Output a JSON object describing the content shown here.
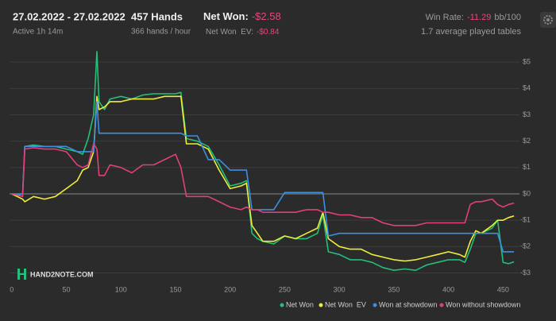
{
  "header": {
    "date_range": "27.02.2022 - 27.02.2022",
    "active": "Active 1h 14m",
    "hands": "457 Hands",
    "hands_per_hour": "366 hands / hour",
    "net_won_label": "Net Won:",
    "net_won_value": "-$2.58",
    "net_won_ev_label": "Net Won  EV:",
    "net_won_ev_value": "-$0.84",
    "win_rate_label": "Win Rate:",
    "win_rate_value": "-11.29",
    "win_rate_unit": "bb/100",
    "tables": "1.7 average played tables"
  },
  "watermark": "HAND2NOTE.COM",
  "chart_data": {
    "type": "line",
    "x": [
      0,
      5,
      10,
      12,
      20,
      30,
      40,
      50,
      60,
      65,
      70,
      75,
      78,
      80,
      85,
      90,
      100,
      110,
      120,
      130,
      140,
      150,
      155,
      160,
      170,
      180,
      190,
      200,
      210,
      215,
      220,
      225,
      230,
      240,
      250,
      260,
      270,
      280,
      285,
      290,
      300,
      310,
      320,
      330,
      340,
      350,
      360,
      370,
      380,
      390,
      400,
      410,
      415,
      420,
      425,
      430,
      440,
      445,
      450,
      455,
      460
    ],
    "series": [
      {
        "name": "Net Won",
        "color": "#22c07a",
        "values": [
          0,
          -0.05,
          0,
          1.8,
          1.85,
          1.8,
          1.8,
          1.7,
          1.6,
          1.5,
          2.1,
          3.0,
          5.4,
          3.5,
          3.2,
          3.6,
          3.7,
          3.6,
          3.75,
          3.8,
          3.8,
          3.8,
          3.85,
          2.1,
          2.0,
          1.8,
          1.1,
          0.3,
          0.4,
          0.5,
          -1.5,
          -1.7,
          -1.8,
          -1.9,
          -1.6,
          -1.7,
          -1.7,
          -1.5,
          -0.8,
          -2.2,
          -2.3,
          -2.5,
          -2.5,
          -2.6,
          -2.8,
          -2.9,
          -2.85,
          -2.9,
          -2.7,
          -2.6,
          -2.5,
          -2.5,
          -2.6,
          -2.1,
          -1.5,
          -1.5,
          -1.3,
          -1.0,
          -2.6,
          -2.65,
          -2.58
        ]
      },
      {
        "name": "Net Won  EV",
        "color": "#eeee3a",
        "values": [
          0,
          -0.1,
          -0.2,
          -0.3,
          -0.1,
          -0.2,
          -0.1,
          0.2,
          0.5,
          0.9,
          1.0,
          1.6,
          3.7,
          3.2,
          3.3,
          3.5,
          3.5,
          3.6,
          3.6,
          3.6,
          3.7,
          3.7,
          3.7,
          1.9,
          1.9,
          1.7,
          0.9,
          0.2,
          0.3,
          0.4,
          -1.2,
          -1.5,
          -1.8,
          -1.8,
          -1.6,
          -1.7,
          -1.5,
          -1.3,
          -0.7,
          -1.7,
          -2.0,
          -2.1,
          -2.1,
          -2.3,
          -2.4,
          -2.5,
          -2.55,
          -2.5,
          -2.4,
          -2.3,
          -2.2,
          -2.3,
          -2.4,
          -1.8,
          -1.4,
          -1.5,
          -1.2,
          -1.0,
          -1.0,
          -0.9,
          -0.84
        ]
      },
      {
        "name": "Won at showdown",
        "color": "#3d8fe0",
        "values": [
          0,
          0,
          0,
          1.8,
          1.8,
          1.8,
          1.8,
          1.8,
          1.6,
          1.6,
          1.6,
          1.6,
          3.5,
          2.3,
          2.3,
          2.3,
          2.3,
          2.3,
          2.3,
          2.3,
          2.3,
          2.3,
          2.3,
          2.2,
          2.2,
          1.3,
          1.3,
          0.9,
          0.9,
          0.9,
          -0.6,
          -0.6,
          -0.6,
          -0.6,
          0.05,
          0.05,
          0.05,
          0.05,
          0.05,
          -1.6,
          -1.5,
          -1.5,
          -1.5,
          -1.5,
          -1.5,
          -1.5,
          -1.5,
          -1.5,
          -1.5,
          -1.5,
          -1.5,
          -1.5,
          -1.5,
          -1.5,
          -1.5,
          -1.5,
          -1.5,
          -1.5,
          -2.2,
          -2.2,
          -2.2
        ]
      },
      {
        "name": "Won without showdown",
        "color": "#e0407a",
        "values": [
          0,
          -0.05,
          -0.1,
          1.7,
          1.75,
          1.7,
          1.7,
          1.6,
          1.1,
          1.0,
          1.1,
          1.9,
          1.7,
          0.7,
          0.7,
          1.1,
          1.0,
          0.8,
          1.1,
          1.1,
          1.3,
          1.5,
          1.0,
          -0.1,
          -0.1,
          -0.1,
          -0.3,
          -0.5,
          -0.6,
          -0.5,
          -0.6,
          -0.6,
          -0.7,
          -0.7,
          -0.7,
          -0.7,
          -0.6,
          -0.6,
          -0.7,
          -0.7,
          -0.8,
          -0.8,
          -0.9,
          -0.9,
          -1.1,
          -1.2,
          -1.2,
          -1.2,
          -1.1,
          -1.1,
          -1.1,
          -1.1,
          -1.1,
          -0.4,
          -0.3,
          -0.3,
          -0.2,
          -0.4,
          -0.5,
          -0.4,
          -0.35
        ]
      }
    ],
    "xlim": [
      -2,
      465
    ],
    "ylim": [
      -3.8,
      5.85
    ],
    "xticks": [
      0,
      50,
      100,
      150,
      200,
      250,
      300,
      350,
      400,
      450
    ],
    "yticks": [
      {
        "value": 5,
        "label": "$5"
      },
      {
        "value": 4,
        "label": "$4"
      },
      {
        "value": 3,
        "label": "$3"
      },
      {
        "value": 2,
        "label": "$2"
      },
      {
        "value": 1,
        "label": "$1"
      },
      {
        "value": 0,
        "label": "$0"
      },
      {
        "value": -1,
        "label": "-$1"
      },
      {
        "value": -2,
        "label": "-$2"
      },
      {
        "value": -3,
        "label": "-$3"
      }
    ],
    "grid": true
  }
}
